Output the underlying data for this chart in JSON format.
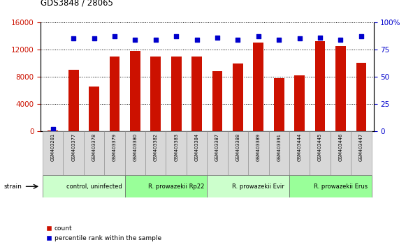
{
  "title": "GDS3848 / 28065",
  "samples": [
    "GSM403281",
    "GSM403377",
    "GSM403378",
    "GSM403379",
    "GSM403380",
    "GSM403382",
    "GSM403383",
    "GSM403384",
    "GSM403387",
    "GSM403388",
    "GSM403389",
    "GSM403391",
    "GSM403444",
    "GSM403445",
    "GSM403446",
    "GSM403447"
  ],
  "counts": [
    100,
    9000,
    6500,
    11000,
    11800,
    11000,
    11000,
    11000,
    8800,
    9900,
    13000,
    7800,
    8200,
    13200,
    12500,
    10000
  ],
  "percentiles": [
    2,
    85,
    85,
    87,
    84,
    84,
    87,
    84,
    86,
    84,
    87,
    84,
    85,
    86,
    84,
    87
  ],
  "groups": [
    {
      "label": "control, uninfected",
      "start": 0,
      "end": 4,
      "color": "#ccffcc"
    },
    {
      "label": "R. prowazekii Rp22",
      "start": 4,
      "end": 8,
      "color": "#99ff99"
    },
    {
      "label": "R. prowazekii Evir",
      "start": 8,
      "end": 12,
      "color": "#ccffcc"
    },
    {
      "label": "R. prowazekii Erus",
      "start": 12,
      "end": 16,
      "color": "#99ff99"
    }
  ],
  "bar_color": "#cc1100",
  "dot_color": "#0000cc",
  "left_ylim": [
    0,
    16000
  ],
  "right_ylim": [
    0,
    100
  ],
  "left_yticks": [
    0,
    4000,
    8000,
    12000,
    16000
  ],
  "right_yticks": [
    0,
    25,
    50,
    75,
    100
  ],
  "left_ycolor": "#cc1100",
  "right_ycolor": "#0000cc",
  "bg_color": "#ffffff",
  "plot_bg_color": "#ffffff",
  "strain_label": "strain"
}
